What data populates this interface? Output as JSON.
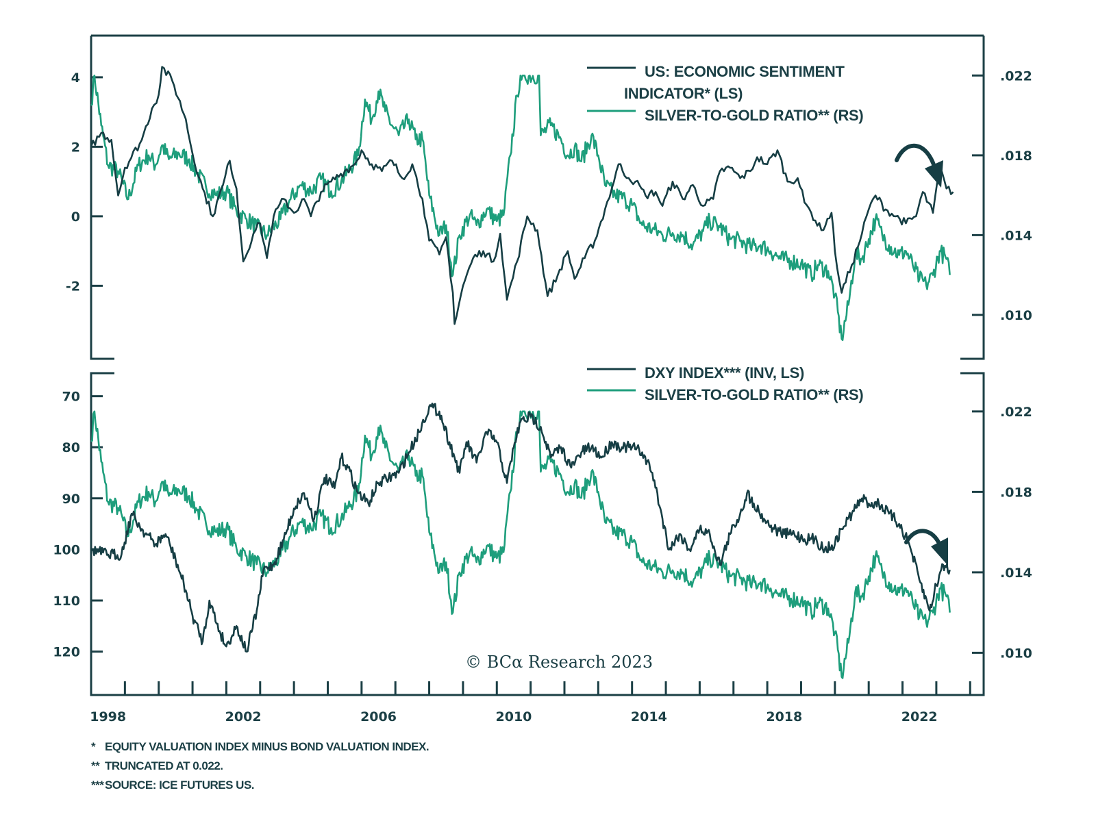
{
  "colors": {
    "dark": "#163e44",
    "green": "#1e9e7c",
    "frame": "#1b3f45"
  },
  "chart_data": [
    {
      "type": "line",
      "panel": "top",
      "legend": [
        {
          "label_line1": "US: ECONOMIC SENTIMENT",
          "label_line2": "INDICATOR* (LS)",
          "series": "esi"
        },
        {
          "label_line1": "SILVER-TO-GOLD RATIO** (RS)",
          "series": "silver_gold"
        }
      ],
      "legend_position": "top-right",
      "y_left": {
        "ticks": [
          4,
          2,
          0,
          -2
        ],
        "tick_labels": [
          "4",
          "2",
          "0",
          "-2"
        ],
        "range": [
          -4.1,
          5.2
        ]
      },
      "y_right": {
        "ticks": [
          0.022,
          0.018,
          0.014,
          0.01
        ],
        "tick_labels": [
          ".022",
          ".018",
          ".014",
          ".010"
        ],
        "range": [
          0.0078,
          0.024
        ]
      },
      "annotation": "curved-down-arrow",
      "series": [
        {
          "name": "US: ECONOMIC SENTIMENT INDICATOR* (LS)",
          "key": "esi",
          "axis": "left",
          "x": [
            1998.0,
            1998.3,
            1998.6,
            1998.8,
            1999.0,
            1999.5,
            1999.8,
            2000.0,
            2000.1,
            2000.4,
            2000.8,
            2001.0,
            2001.3,
            2001.6,
            2001.9,
            2002.1,
            2002.3,
            2002.5,
            2002.8,
            2003.0,
            2003.2,
            2003.4,
            2003.7,
            2004.0,
            2004.3,
            2004.5,
            2004.8,
            2005.1,
            2005.5,
            2005.8,
            2006.0,
            2006.3,
            2006.6,
            2006.9,
            2007.2,
            2007.5,
            2007.8,
            2008.0,
            2008.3,
            2008.5,
            2008.7,
            2008.75,
            2009.0,
            2009.3,
            2009.6,
            2009.9,
            2010.1,
            2010.3,
            2010.6,
            2010.9,
            2011.2,
            2011.5,
            2011.8,
            2012.1,
            2012.3,
            2012.6,
            2012.9,
            2013.2,
            2013.4,
            2013.6,
            2013.9,
            2014.1,
            2014.4,
            2014.7,
            2014.9,
            2015.2,
            2015.5,
            2015.8,
            2016.1,
            2016.4,
            2016.6,
            2016.9,
            2017.2,
            2017.5,
            2017.7,
            2018.0,
            2018.3,
            2018.6,
            2018.9,
            2019.1,
            2019.3,
            2019.6,
            2019.9,
            2020.0,
            2020.2,
            2020.5,
            2020.8,
            2021.0,
            2021.2,
            2021.5,
            2021.8,
            2022.1,
            2022.4,
            2022.6,
            2022.9,
            2023.1,
            2023.3,
            2023.5
          ],
          "values": [
            2.0,
            2.4,
            2.2,
            0.6,
            1.4,
            2.2,
            3.1,
            3.5,
            4.3,
            3.9,
            2.8,
            1.8,
            0.8,
            0.0,
            0.9,
            1.6,
            0.8,
            -1.3,
            -0.5,
            -0.2,
            -1.2,
            0.0,
            0.5,
            0.1,
            0.5,
            0.0,
            0.7,
            1.0,
            1.3,
            1.5,
            1.9,
            1.5,
            1.3,
            1.6,
            1.1,
            1.5,
            0.5,
            -0.7,
            -1.1,
            -0.6,
            -2.2,
            -3.1,
            -2.0,
            -1.2,
            -1.0,
            -1.3,
            -0.5,
            -2.4,
            -1.3,
            0.0,
            -0.4,
            -2.3,
            -1.7,
            -1.0,
            -1.8,
            -1.2,
            -0.7,
            0.2,
            0.8,
            1.5,
            1.1,
            1.0,
            0.6,
            0.7,
            0.3,
            1.0,
            0.5,
            0.9,
            0.3,
            0.5,
            1.3,
            1.4,
            1.1,
            1.3,
            1.7,
            1.5,
            1.9,
            1.0,
            1.1,
            0.4,
            0.1,
            -0.4,
            0.1,
            -1.0,
            -2.2,
            -1.4,
            -0.5,
            0.2,
            0.6,
            0.2,
            0.0,
            -0.2,
            0.0,
            0.7,
            0.1,
            1.4,
            0.8,
            0.7
          ]
        },
        {
          "name": "SILVER-TO-GOLD RATIO** (RS)",
          "key": "silver_gold",
          "axis": "right",
          "ref": "silver_gold"
        }
      ]
    },
    {
      "type": "line",
      "panel": "bottom",
      "legend": [
        {
          "label_line1": "DXY INDEX*** (INV, LS)",
          "series": "dxy"
        },
        {
          "label_line1": "SILVER-TO-GOLD RATIO** (RS)",
          "series": "silver_gold"
        }
      ],
      "legend_position": "top-right",
      "y_left": {
        "ticks": [
          70,
          80,
          90,
          100,
          110,
          120
        ],
        "tick_labels": [
          "70",
          "80",
          "90",
          "100",
          "110",
          "120"
        ],
        "range": [
          65.5,
          128.5
        ],
        "inverted": true
      },
      "y_right": {
        "ticks": [
          0.022,
          0.018,
          0.014,
          0.01
        ],
        "tick_labels": [
          ".022",
          ".018",
          ".014",
          ".010"
        ],
        "range": [
          0.0079,
          0.0239
        ]
      },
      "annotation": "curved-down-arrow",
      "series": [
        {
          "name": "DXY INDEX*** (INV, LS)",
          "key": "dxy",
          "axis": "left",
          "x": [
            1998.0,
            1998.5,
            1998.9,
            1999.2,
            1999.5,
            1999.9,
            2000.2,
            2000.5,
            2000.8,
            2001.0,
            2001.3,
            2001.5,
            2001.8,
            2002.0,
            2002.3,
            2002.6,
            2002.9,
            2003.1,
            2003.4,
            2003.7,
            2004.0,
            2004.3,
            2004.6,
            2004.9,
            2005.2,
            2005.4,
            2005.6,
            2005.9,
            2006.2,
            2006.5,
            2006.8,
            2007.1,
            2007.4,
            2007.7,
            2008.0,
            2008.3,
            2008.6,
            2008.9,
            2009.1,
            2009.4,
            2009.7,
            2010.0,
            2010.3,
            2010.5,
            2010.7,
            2011.0,
            2011.3,
            2011.6,
            2011.9,
            2012.2,
            2012.5,
            2012.8,
            2013.1,
            2013.4,
            2013.7,
            2014.0,
            2014.3,
            2014.6,
            2014.9,
            2015.1,
            2015.4,
            2015.7,
            2016.0,
            2016.3,
            2016.6,
            2016.9,
            2017.2,
            2017.4,
            2017.6,
            2017.9,
            2018.2,
            2018.5,
            2018.8,
            2019.1,
            2019.4,
            2019.7,
            2020.0,
            2020.2,
            2020.5,
            2020.8,
            2021.0,
            2021.3,
            2021.6,
            2021.9,
            2022.2,
            2022.5,
            2022.8,
            2023.0,
            2023.2,
            2023.4
          ],
          "values": [
            100,
            101,
            101,
            93,
            96,
            99,
            97,
            102,
            108,
            113,
            118,
            110,
            116,
            119,
            115,
            120,
            112,
            104,
            103,
            98,
            92,
            89,
            94,
            86,
            88,
            82,
            84,
            89,
            91,
            87,
            86,
            85,
            81,
            77,
            72,
            73,
            79,
            85,
            79,
            83,
            77,
            79,
            87,
            80,
            75,
            74,
            76,
            82,
            80,
            84,
            81,
            80,
            82,
            79,
            80,
            80,
            81,
            85,
            94,
            100,
            97,
            100,
            96,
            97,
            103,
            97,
            93,
            89,
            91,
            94,
            96,
            97,
            97,
            98,
            98,
            100,
            99,
            96,
            93,
            90,
            91,
            91,
            93,
            95,
            99,
            106,
            112,
            107,
            103,
            104
          ]
        },
        {
          "name": "SILVER-TO-GOLD RATIO** (RS)",
          "key": "silver_gold",
          "axis": "right",
          "ref": "silver_gold"
        }
      ]
    }
  ],
  "silver_gold_series": {
    "note": "truncated at 0.022",
    "x": [
      1998.0,
      1998.1,
      1998.3,
      1998.5,
      1998.8,
      1999.1,
      1999.4,
      1999.7,
      1999.9,
      2000.1,
      2000.3,
      2000.6,
      2000.9,
      2001.1,
      2001.4,
      2001.7,
      2002.0,
      2002.3,
      2002.6,
      2002.9,
      2003.2,
      2003.6,
      2003.9,
      2004.2,
      2004.5,
      2004.8,
      2005.1,
      2005.4,
      2005.6,
      2005.9,
      2006.1,
      2006.3,
      2006.5,
      2006.7,
      2006.9,
      2007.1,
      2007.4,
      2007.6,
      2007.8,
      2008.0,
      2008.3,
      2008.5,
      2008.7,
      2008.9,
      2009.2,
      2009.4,
      2009.7,
      2010.0,
      2010.2,
      2010.4,
      2010.6,
      2010.7,
      2011.25,
      2011.3,
      2011.6,
      2011.9,
      2012.1,
      2012.3,
      2012.5,
      2012.8,
      2013.0,
      2013.2,
      2013.5,
      2013.8,
      2014.0,
      2014.3,
      2014.6,
      2014.9,
      2015.2,
      2015.5,
      2015.8,
      2016.1,
      2016.3,
      2016.6,
      2016.9,
      2017.2,
      2017.5,
      2017.8,
      2018.1,
      2018.4,
      2018.7,
      2019.0,
      2019.3,
      2019.5,
      2019.8,
      2020.0,
      2020.2,
      2020.4,
      2020.6,
      2020.8,
      2021.0,
      2021.2,
      2021.4,
      2021.6,
      2021.9,
      2022.1,
      2022.3,
      2022.5,
      2022.7,
      2022.9,
      2023.1,
      2023.3,
      2023.4
    ],
    "values": [
      0.0205,
      0.022,
      0.0195,
      0.0175,
      0.0172,
      0.0158,
      0.0175,
      0.018,
      0.0175,
      0.0185,
      0.0178,
      0.0181,
      0.0178,
      0.0172,
      0.0164,
      0.016,
      0.0162,
      0.0152,
      0.0148,
      0.0144,
      0.014,
      0.0148,
      0.0158,
      0.0165,
      0.0162,
      0.0168,
      0.0162,
      0.0167,
      0.0172,
      0.018,
      0.0208,
      0.0198,
      0.0212,
      0.0202,
      0.0195,
      0.019,
      0.0198,
      0.0188,
      0.0188,
      0.016,
      0.014,
      0.0145,
      0.012,
      0.014,
      0.015,
      0.0145,
      0.0153,
      0.0147,
      0.015,
      0.018,
      0.021,
      0.022,
      0.022,
      0.019,
      0.0195,
      0.0188,
      0.018,
      0.0184,
      0.0177,
      0.019,
      0.018,
      0.0165,
      0.016,
      0.0158,
      0.0155,
      0.0145,
      0.0143,
      0.014,
      0.0141,
      0.014,
      0.0135,
      0.0142,
      0.0147,
      0.0144,
      0.0138,
      0.0137,
      0.0134,
      0.0135,
      0.0132,
      0.0128,
      0.0127,
      0.0126,
      0.012,
      0.0125,
      0.0122,
      0.011,
      0.0088,
      0.0105,
      0.013,
      0.0128,
      0.0138,
      0.0148,
      0.014,
      0.0135,
      0.013,
      0.0132,
      0.0125,
      0.0118,
      0.0115,
      0.012,
      0.0132,
      0.0128,
      0.012
    ]
  },
  "x_axis": {
    "range": [
      1998.0,
      2024.4
    ],
    "labels": [
      "1998",
      "2002",
      "2006",
      "2010",
      "2014",
      "2018",
      "2022"
    ],
    "label_years": [
      1998,
      2002,
      2006,
      2010,
      2014,
      2018,
      2022
    ],
    "tick_years": [
      1999,
      2000,
      2001,
      2002,
      2003,
      2004,
      2005,
      2006,
      2007,
      2008,
      2009,
      2010,
      2011,
      2012,
      2013,
      2014,
      2015,
      2016,
      2017,
      2018,
      2019,
      2020,
      2021,
      2022,
      2023,
      2024
    ]
  },
  "copyright": "© BCα Research 2023",
  "footnotes": [
    {
      "mark": "*",
      "text": "EQUITY VALUATION INDEX MINUS BOND VALUATION INDEX."
    },
    {
      "mark": "**",
      "text": "TRUNCATED AT 0.022."
    },
    {
      "mark": "***",
      "text": "SOURCE: ICE FUTURES US."
    }
  ]
}
